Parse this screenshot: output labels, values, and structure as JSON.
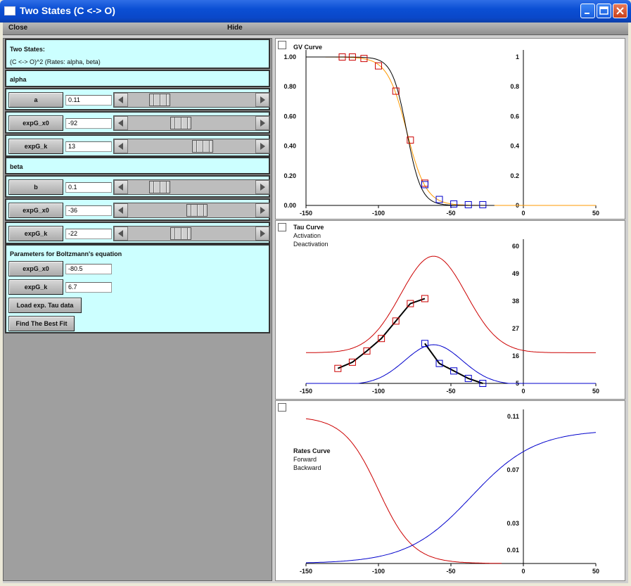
{
  "window": {
    "title": "Two States (C <-> O)"
  },
  "menu": {
    "close": "Close",
    "hide": "Hide"
  },
  "model": {
    "line1": "Two States:",
    "line2": "(C <-> O)^2 (Rates: alpha, beta)"
  },
  "alpha": {
    "section_label": "alpha",
    "params": [
      {
        "label": "a",
        "value": "0.11",
        "slider": 0.2
      },
      {
        "label": "expG_x0",
        "value": "-92",
        "slider": 0.4
      },
      {
        "label": "expG_k",
        "value": "13",
        "slider": 0.6
      }
    ]
  },
  "beta": {
    "section_label": "beta",
    "params": [
      {
        "label": "b",
        "value": "0.1",
        "slider": 0.2
      },
      {
        "label": "expG_x0",
        "value": "-36",
        "slider": 0.55
      },
      {
        "label": "expG_k",
        "value": "-22",
        "slider": 0.4
      }
    ]
  },
  "boltzmann": {
    "section_label": "Parameters for Boltzmann's equation",
    "params": [
      {
        "label": "expG_x0",
        "value": "-80.5"
      },
      {
        "label": "expG_k",
        "value": "6.7"
      }
    ],
    "load_button": "Load exp. Tau data",
    "fit_button": "Find The Best Fit"
  },
  "colors": {
    "red": "#cc0000",
    "blue": "#0000cc",
    "orange": "#ff9900",
    "black": "#000000"
  },
  "chart_data": [
    {
      "type": "line",
      "title": "GV Curve",
      "x_ticks": [
        -150,
        -100,
        -50,
        0,
        50
      ],
      "y_ticks_left": [
        "0.00",
        "0.20",
        "0.40",
        "0.60",
        "0.80",
        "1.00"
      ],
      "y_ticks_right": [
        "0",
        "0.2",
        "0.4",
        "0.6",
        "0.8",
        "1"
      ],
      "xlim": [
        -150,
        50
      ],
      "ylim": [
        0,
        1
      ],
      "series": [
        {
          "color": "#ff9900",
          "boltzmann": {
            "v_half": -80.5,
            "k": 6.7
          }
        },
        {
          "color": "#000000",
          "fit": true
        },
        {
          "color": "#cc0000",
          "markers": true,
          "x": [
            -125,
            -118,
            -110,
            -100,
            -88,
            -78,
            -68
          ],
          "y": [
            1.0,
            1.0,
            0.99,
            0.94,
            0.77,
            0.44,
            0.15
          ]
        },
        {
          "color": "#0000cc",
          "markers": true,
          "x": [
            -68,
            -58,
            -48,
            -38,
            -28
          ],
          "y": [
            0.14,
            0.04,
            0.01,
            0.005,
            0.005
          ]
        }
      ]
    },
    {
      "type": "line",
      "title": "Tau Curve",
      "legend": [
        {
          "label": "Activation",
          "color": "#cc0000"
        },
        {
          "label": "Deactivation",
          "color": "#0000cc"
        }
      ],
      "x_ticks": [
        -150,
        -100,
        -50,
        0,
        50
      ],
      "y_ticks_right": [
        "5",
        "16",
        "27",
        "38",
        "49",
        "60"
      ],
      "xlim": [
        -150,
        50
      ],
      "ylim": [
        5,
        60
      ],
      "series": [
        {
          "color": "#cc0000",
          "model_curve": "activation"
        },
        {
          "color": "#0000cc",
          "model_curve": "deactivation"
        },
        {
          "color": "#cc0000",
          "markers": true,
          "x": [
            -128,
            -118,
            -108,
            -98,
            -88,
            -78,
            -68
          ],
          "y": [
            11,
            13.5,
            18,
            23,
            30,
            37,
            39
          ]
        },
        {
          "color": "#0000cc",
          "markers": true,
          "x": [
            -68,
            -58,
            -48,
            -38,
            -28
          ],
          "y": [
            21,
            13,
            10,
            7,
            5
          ]
        }
      ]
    },
    {
      "type": "line",
      "title": "Rates Curve",
      "legend": [
        {
          "label": "Forward",
          "color": "#cc0000"
        },
        {
          "label": "Backward",
          "color": "#0000cc"
        }
      ],
      "x_ticks": [
        -150,
        -100,
        -50,
        0,
        50
      ],
      "y_ticks_right": [
        "0.01",
        "0.03",
        "0.07",
        "0.11"
      ],
      "xlim": [
        -150,
        50
      ],
      "ylim": [
        0.0,
        0.11
      ],
      "series": [
        {
          "color": "#cc0000",
          "model_curve": "forward"
        },
        {
          "color": "#0000cc",
          "model_curve": "backward"
        }
      ]
    }
  ]
}
